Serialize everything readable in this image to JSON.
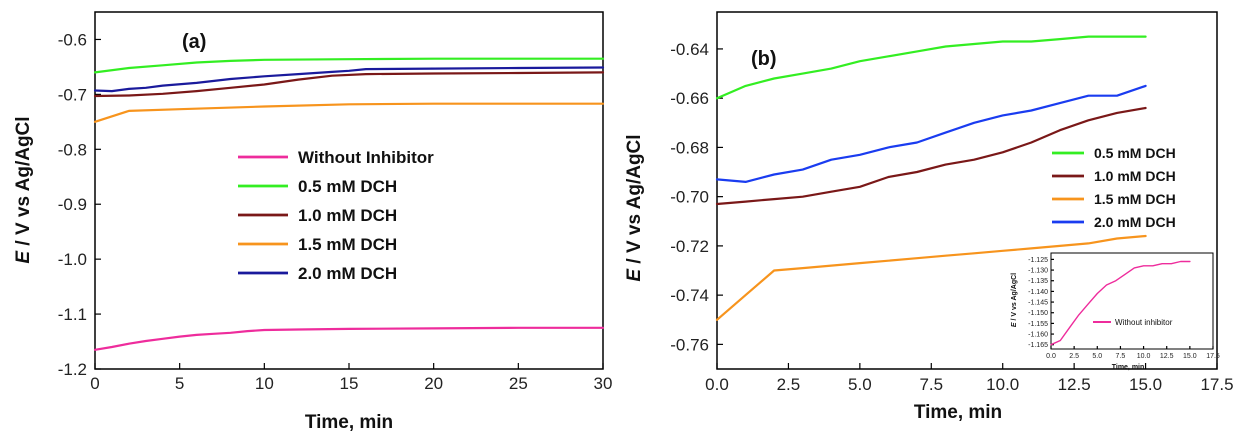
{
  "chart_data": [
    {
      "type": "line",
      "panel_label": "(a)",
      "xlabel": "Time,  min",
      "ylabel_italic": "E",
      "ylabel_rest": " / V vs Ag/AgCl",
      "xlim": [
        0,
        30
      ],
      "ylim": [
        -1.2,
        -0.55
      ],
      "xticks": [
        0,
        5,
        10,
        15,
        20,
        25,
        30
      ],
      "xtick_labels": [
        "0",
        "5",
        "10",
        "15",
        "20",
        "25",
        "30"
      ],
      "yticks": [
        -1.2,
        -1.1,
        -1.0,
        -0.9,
        -0.8,
        -0.7,
        -0.6
      ],
      "ytick_labels": [
        "-1.2",
        "-1.1",
        "-1.0",
        "-0.9",
        "-0.8",
        "-0.7",
        "-0.6"
      ],
      "legend_position": "center",
      "series": [
        {
          "name": "Without Inhibitor",
          "color": "#ee2c9c",
          "x": [
            0,
            1,
            2,
            3,
            4,
            5,
            6,
            7,
            8,
            9,
            10,
            12,
            15,
            20,
            25,
            30
          ],
          "y": [
            -1.165,
            -1.16,
            -1.154,
            -1.149,
            -1.145,
            -1.141,
            -1.138,
            -1.136,
            -1.134,
            -1.131,
            -1.129,
            -1.128,
            -1.127,
            -1.126,
            -1.125,
            -1.125
          ]
        },
        {
          "name": "0.5 mM DCH",
          "color": "#33ee22",
          "x": [
            0,
            2,
            4,
            6,
            8,
            10,
            15,
            20,
            25,
            30
          ],
          "y": [
            -0.66,
            -0.652,
            -0.647,
            -0.642,
            -0.639,
            -0.637,
            -0.636,
            -0.635,
            -0.635,
            -0.635
          ]
        },
        {
          "name": "1.0 mM DCH",
          "color": "#7a1818",
          "x": [
            0,
            2,
            4,
            6,
            8,
            10,
            12,
            14,
            16,
            20,
            25,
            30
          ],
          "y": [
            -0.703,
            -0.702,
            -0.699,
            -0.694,
            -0.688,
            -0.682,
            -0.673,
            -0.666,
            -0.663,
            -0.662,
            -0.661,
            -0.66
          ]
        },
        {
          "name": "1.5 mM DCH",
          "color": "#f7941d",
          "x": [
            0,
            2,
            5,
            10,
            15,
            20,
            25,
            30
          ],
          "y": [
            -0.75,
            -0.73,
            -0.727,
            -0.722,
            -0.718,
            -0.717,
            -0.717,
            -0.717
          ]
        },
        {
          "name": "2.0 mM DCH",
          "color": "#1a1a9c",
          "x": [
            0,
            1,
            2,
            3,
            4,
            6,
            8,
            10,
            12,
            14,
            15,
            16,
            20,
            25,
            30
          ],
          "y": [
            -0.693,
            -0.694,
            -0.69,
            -0.688,
            -0.684,
            -0.679,
            -0.672,
            -0.667,
            -0.663,
            -0.659,
            -0.657,
            -0.654,
            -0.653,
            -0.652,
            -0.651
          ]
        }
      ]
    },
    {
      "type": "line",
      "panel_label": "(b)",
      "xlabel": "Time, min",
      "ylabel_italic": "E",
      "ylabel_rest": " / V vs Ag/AgCl",
      "xlim": [
        0,
        17.5
      ],
      "ylim": [
        -0.77,
        -0.625
      ],
      "xticks": [
        0,
        2.5,
        5,
        7.5,
        10,
        12.5,
        15,
        17.5
      ],
      "xtick_labels": [
        "0.0",
        "2.5",
        "5.0",
        "7.5",
        "10.0",
        "12.5",
        "15.0",
        "17.5"
      ],
      "yticks": [
        -0.76,
        -0.74,
        -0.72,
        -0.7,
        -0.68,
        -0.66,
        -0.64
      ],
      "ytick_labels": [
        "-0.76",
        "-0.74",
        "-0.72",
        "-0.70",
        "-0.68",
        "-0.66",
        "-0.64"
      ],
      "legend_position": "right",
      "series": [
        {
          "name": "0.5 mM DCH",
          "color": "#33ee22",
          "x": [
            0,
            1,
            2,
            3,
            4,
            5,
            6,
            7,
            8,
            9,
            10,
            11,
            12,
            13,
            14,
            15
          ],
          "y": [
            -0.66,
            -0.655,
            -0.652,
            -0.65,
            -0.648,
            -0.645,
            -0.643,
            -0.641,
            -0.639,
            -0.638,
            -0.637,
            -0.637,
            -0.636,
            -0.635,
            -0.635,
            -0.635
          ]
        },
        {
          "name": "1.0 mM DCH",
          "color": "#7a1818",
          "x": [
            0,
            1,
            2,
            3,
            4,
            5,
            6,
            7,
            8,
            9,
            10,
            11,
            12,
            13,
            14,
            15
          ],
          "y": [
            -0.703,
            -0.702,
            -0.701,
            -0.7,
            -0.698,
            -0.696,
            -0.692,
            -0.69,
            -0.687,
            -0.685,
            -0.682,
            -0.678,
            -0.673,
            -0.669,
            -0.666,
            -0.664
          ]
        },
        {
          "name": "1.5 mM DCH",
          "color": "#f7941d",
          "x": [
            0,
            1,
            2,
            3,
            4,
            5,
            6,
            7,
            8,
            9,
            10,
            11,
            12,
            13,
            14,
            15
          ],
          "y": [
            -0.75,
            -0.74,
            -0.73,
            -0.729,
            -0.728,
            -0.727,
            -0.726,
            -0.725,
            -0.724,
            -0.723,
            -0.722,
            -0.721,
            -0.72,
            -0.719,
            -0.717,
            -0.716
          ]
        },
        {
          "name": "2.0 mM DCH",
          "color": "#1a3cf0",
          "x": [
            0,
            1,
            2,
            3,
            4,
            5,
            6,
            7,
            8,
            9,
            10,
            11,
            12,
            13,
            14,
            15
          ],
          "y": [
            -0.693,
            -0.694,
            -0.691,
            -0.689,
            -0.685,
            -0.683,
            -0.68,
            -0.678,
            -0.674,
            -0.67,
            -0.667,
            -0.665,
            -0.662,
            -0.659,
            -0.659,
            -0.655
          ]
        }
      ],
      "inset": {
        "xlabel": "Time, min",
        "ylabel_italic": "E",
        "ylabel_rest": " / V vs Ag/AgCl",
        "xlim": [
          0,
          17.5
        ],
        "ylim": [
          -1.167,
          -1.122
        ],
        "xticks": [
          0,
          2.5,
          5,
          7.5,
          10,
          12.5,
          15,
          17.5
        ],
        "xtick_labels": [
          "0.0",
          "2.5",
          "5.0",
          "7.5",
          "10.0",
          "12.5",
          "15.0",
          "17.5"
        ],
        "yticks": [
          -1.165,
          -1.16,
          -1.155,
          -1.15,
          -1.145,
          -1.14,
          -1.135,
          -1.13,
          -1.125
        ],
        "ytick_labels": [
          "-1.165",
          "-1.160",
          "-1.155",
          "-1.150",
          "-1.145",
          "-1.140",
          "-1.135",
          "-1.130",
          "-1.125"
        ],
        "series": [
          {
            "name": "Without inhibitor",
            "color": "#ee2c9c",
            "x": [
              0,
              1,
              2,
              3,
              4,
              5,
              6,
              7,
              8,
              9,
              10,
              11,
              12,
              13,
              14,
              15
            ],
            "y": [
              -1.165,
              -1.163,
              -1.157,
              -1.151,
              -1.146,
              -1.141,
              -1.137,
              -1.135,
              -1.132,
              -1.129,
              -1.128,
              -1.128,
              -1.127,
              -1.127,
              -1.126,
              -1.126
            ]
          }
        ]
      }
    }
  ]
}
